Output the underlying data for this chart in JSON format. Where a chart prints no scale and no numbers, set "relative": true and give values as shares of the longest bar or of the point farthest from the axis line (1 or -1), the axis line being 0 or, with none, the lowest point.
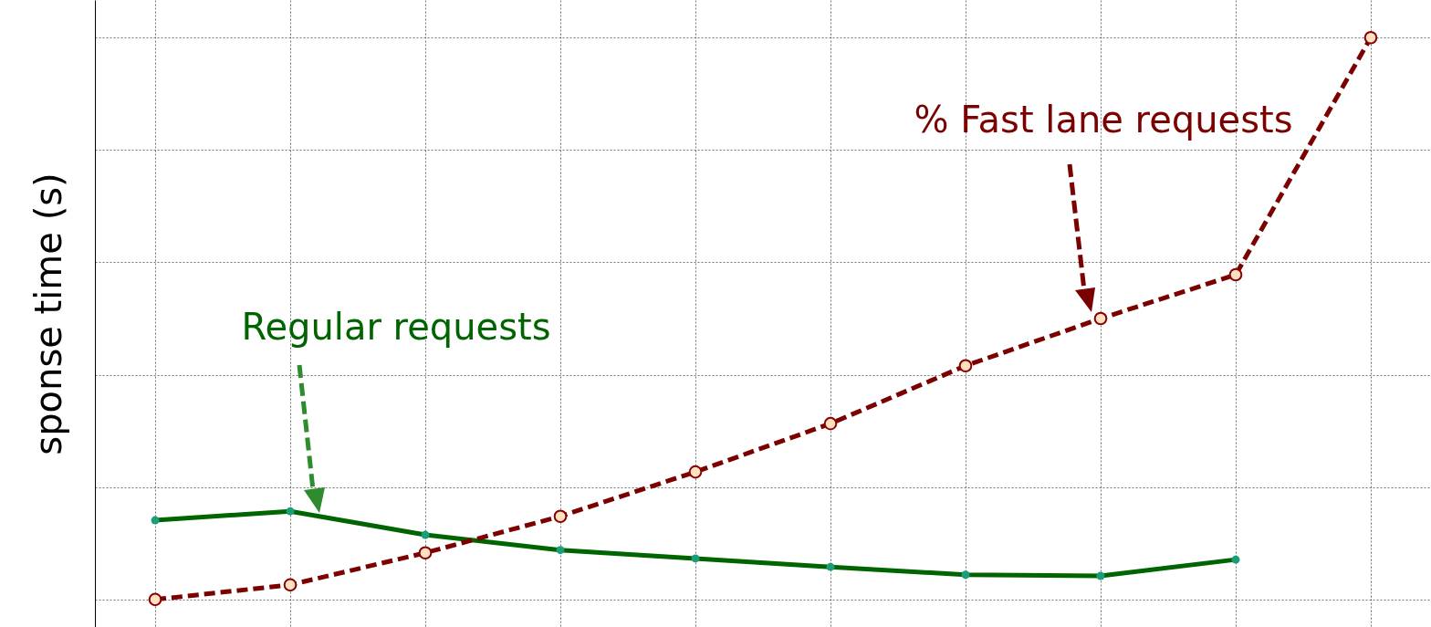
{
  "chart_data": {
    "type": "line",
    "ylabel": "sponse time (s)",
    "relative": true,
    "grid": true,
    "categories": [
      null,
      null,
      null,
      null,
      null,
      null,
      null,
      null,
      null,
      null
    ],
    "series": [
      {
        "name": "Regular requests",
        "color": "#006400",
        "line_style": "solid",
        "marker": "circle",
        "values": [
          0.141,
          0.157,
          0.115,
          0.088,
          0.073,
          0.058,
          0.044,
          0.042,
          0.071,
          null
        ]
      },
      {
        "name": "% Fast lane requests",
        "color": "#7b0000",
        "line_style": "dashed",
        "marker": "circle",
        "values": [
          0,
          0.026,
          0.083,
          0.148,
          0.227,
          0.313,
          0.416,
          0.5,
          0.578,
          1
        ]
      }
    ]
  }
}
